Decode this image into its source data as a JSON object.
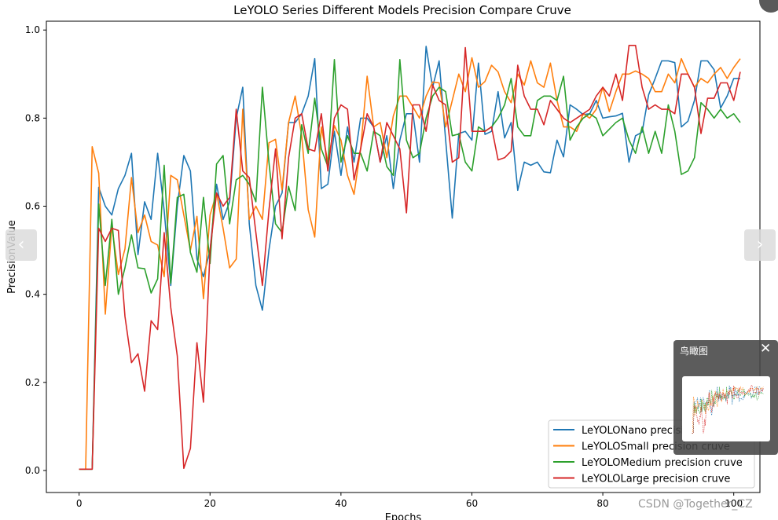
{
  "chart_data": {
    "type": "line",
    "title": "LeYOLO Series Different Models Precision Compare Cruve",
    "xlabel": "Epochs",
    "ylabel": "PrecisionValue",
    "xlim": [
      -5,
      104
    ],
    "ylim": [
      -0.05,
      1.02
    ],
    "xticks": [
      0,
      20,
      40,
      60,
      80,
      100
    ],
    "yticks": [
      0.0,
      0.2,
      0.4,
      0.6,
      0.8,
      1.0
    ],
    "grid": false,
    "legend_position": "bottom-right",
    "series": [
      {
        "name": "LeYOLONano precision cruve",
        "color": "#1f77b4",
        "values": [
          0.003,
          0.003,
          0.003,
          0.643,
          0.6,
          0.58,
          0.64,
          0.67,
          0.72,
          0.49,
          0.61,
          0.57,
          0.72,
          0.59,
          0.42,
          0.6,
          0.715,
          0.68,
          0.48,
          0.44,
          0.5,
          0.65,
          0.57,
          0.61,
          0.8,
          0.87,
          0.56,
          0.42,
          0.364,
          0.5,
          0.6,
          0.63,
          0.79,
          0.79,
          0.81,
          0.85,
          0.935,
          0.64,
          0.65,
          0.77,
          0.67,
          0.78,
          0.7,
          0.8,
          0.8,
          0.78,
          0.7,
          0.76,
          0.64,
          0.75,
          0.81,
          0.81,
          0.7,
          0.963,
          0.87,
          0.93,
          0.75,
          0.573,
          0.765,
          0.77,
          0.75,
          0.925,
          0.763,
          0.77,
          0.86,
          0.755,
          0.79,
          0.636,
          0.7,
          0.693,
          0.7,
          0.678,
          0.676,
          0.75,
          0.712,
          0.83,
          0.82,
          0.808,
          0.81,
          0.84,
          0.8,
          0.803,
          0.805,
          0.811,
          0.7,
          0.76,
          0.768,
          0.853,
          0.89,
          0.93,
          0.93,
          0.926,
          0.78,
          0.793,
          0.84,
          0.93,
          0.93,
          0.91,
          0.823,
          0.85,
          0.89,
          0.89
        ]
      },
      {
        "name": "LeYOLOSmall precision cruve",
        "color": "#ff7f0e",
        "values": [
          0.003,
          0.003,
          0.735,
          0.675,
          0.355,
          0.555,
          0.445,
          0.503,
          0.665,
          0.54,
          0.58,
          0.52,
          0.512,
          0.44,
          0.67,
          0.66,
          0.58,
          0.5,
          0.577,
          0.39,
          0.58,
          0.63,
          0.55,
          0.46,
          0.48,
          0.82,
          0.57,
          0.6,
          0.57,
          0.744,
          0.752,
          0.637,
          0.79,
          0.85,
          0.76,
          0.592,
          0.53,
          0.78,
          0.7,
          0.783,
          0.75,
          0.67,
          0.627,
          0.73,
          0.895,
          0.78,
          0.79,
          0.71,
          0.805,
          0.85,
          0.85,
          0.825,
          0.8,
          0.85,
          0.882,
          0.88,
          0.78,
          0.84,
          0.9,
          0.86,
          0.937,
          0.87,
          0.883,
          0.92,
          0.905,
          0.86,
          0.835,
          0.9,
          0.875,
          0.93,
          0.88,
          0.87,
          0.925,
          0.84,
          0.78,
          0.78,
          0.77,
          0.81,
          0.8,
          0.82,
          0.87,
          0.815,
          0.86,
          0.9,
          0.9,
          0.907,
          0.9,
          0.89,
          0.86,
          0.86,
          0.9,
          0.88,
          0.935,
          0.9,
          0.87,
          0.89,
          0.88,
          0.9,
          0.915,
          0.89,
          0.915,
          0.935
        ]
      },
      {
        "name": "LeYOLOMedium precision cruve",
        "color": "#2ca02c",
        "values": [
          0.003,
          0.003,
          0.003,
          0.605,
          0.42,
          0.57,
          0.4,
          0.46,
          0.535,
          0.46,
          0.458,
          0.403,
          0.435,
          0.693,
          0.425,
          0.62,
          0.627,
          0.495,
          0.45,
          0.62,
          0.47,
          0.696,
          0.715,
          0.56,
          0.66,
          0.67,
          0.65,
          0.61,
          0.87,
          0.7,
          0.56,
          0.54,
          0.645,
          0.59,
          0.785,
          0.72,
          0.845,
          0.73,
          0.69,
          0.933,
          0.7,
          0.76,
          0.72,
          0.72,
          0.68,
          0.77,
          0.76,
          0.69,
          0.67,
          0.933,
          0.75,
          0.71,
          0.72,
          0.8,
          0.85,
          0.87,
          0.86,
          0.76,
          0.764,
          0.7,
          0.68,
          0.78,
          0.77,
          0.78,
          0.8,
          0.83,
          0.89,
          0.78,
          0.76,
          0.76,
          0.84,
          0.85,
          0.85,
          0.84,
          0.895,
          0.75,
          0.78,
          0.8,
          0.81,
          0.8,
          0.76,
          0.775,
          0.79,
          0.8,
          0.75,
          0.72,
          0.78,
          0.72,
          0.77,
          0.72,
          0.83,
          0.77,
          0.672,
          0.68,
          0.71,
          0.835,
          0.82,
          0.8,
          0.82,
          0.8,
          0.81,
          0.79
        ]
      },
      {
        "name": "LeYOLOLarge precision cruve",
        "color": "#d62728",
        "values": [
          0.003,
          0.003,
          0.003,
          0.55,
          0.52,
          0.55,
          0.545,
          0.35,
          0.245,
          0.265,
          0.18,
          0.34,
          0.32,
          0.54,
          0.37,
          0.26,
          0.005,
          0.05,
          0.29,
          0.155,
          0.5,
          0.63,
          0.6,
          0.62,
          0.82,
          0.68,
          0.665,
          0.54,
          0.42,
          0.59,
          0.73,
          0.526,
          0.71,
          0.8,
          0.81,
          0.73,
          0.725,
          0.81,
          0.68,
          0.8,
          0.83,
          0.82,
          0.66,
          0.73,
          0.81,
          0.78,
          0.7,
          0.79,
          0.76,
          0.73,
          0.585,
          0.83,
          0.83,
          0.77,
          0.875,
          0.84,
          0.83,
          0.7,
          0.71,
          0.96,
          0.77,
          0.77,
          0.77,
          0.78,
          0.705,
          0.71,
          0.725,
          0.92,
          0.85,
          0.82,
          0.82,
          0.785,
          0.84,
          0.82,
          0.8,
          0.79,
          0.8,
          0.81,
          0.82,
          0.85,
          0.87,
          0.85,
          0.9,
          0.84,
          0.965,
          0.965,
          0.87,
          0.82,
          0.83,
          0.82,
          0.82,
          0.81,
          0.9,
          0.9,
          0.87,
          0.765,
          0.845,
          0.845,
          0.88,
          0.88,
          0.84,
          0.905
        ]
      }
    ]
  },
  "overlay": {
    "prev_arrow": "‹",
    "next_arrow": "›",
    "birdseye_title": "鸟瞰图",
    "birdseye_close": "✕",
    "watermark": "CSDN @Together_CZ"
  },
  "icons": {
    "prev": "chevron-left-icon",
    "next": "chevron-right-icon",
    "close": "close-icon"
  }
}
